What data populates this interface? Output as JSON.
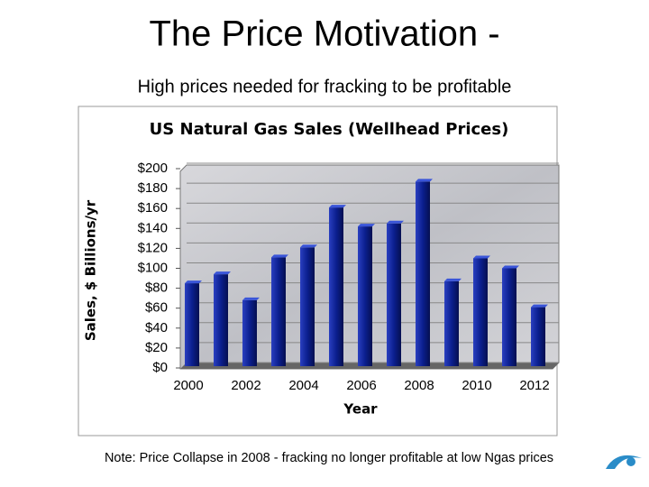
{
  "title": "The Price Motivation -",
  "subtitle": "High prices needed for fracking to be profitable",
  "note": "Note: Price Collapse in 2008 - fracking no longer profitable at low Ngas prices",
  "chart_data": {
    "type": "bar",
    "title": "US Natural Gas Sales (Wellhead Prices)",
    "x_label": "Year",
    "y_label": "Sales, $ Billions/yr",
    "categories": [
      "2000",
      null,
      "2002",
      null,
      "2004",
      null,
      "2006",
      null,
      "2008",
      null,
      "2010",
      null,
      "2012"
    ],
    "values": [
      85,
      94,
      68,
      111,
      121,
      161,
      142,
      145,
      187,
      87,
      110,
      100,
      61
    ],
    "color": "#0b1f8f",
    "ylim": [
      0,
      200
    ],
    "yticks": [
      {
        "value": 0,
        "label": "$0"
      },
      {
        "value": 20,
        "label": "$20"
      },
      {
        "value": 40,
        "label": "$40"
      },
      {
        "value": 60,
        "label": "$60"
      },
      {
        "value": 80,
        "label": "$80"
      },
      {
        "value": 100,
        "label": "$100"
      },
      {
        "value": 120,
        "label": "$120"
      },
      {
        "value": 140,
        "label": "$140"
      },
      {
        "value": 160,
        "label": "$160"
      },
      {
        "value": 180,
        "label": "$180"
      },
      {
        "value": 200,
        "label": "$200"
      }
    ],
    "grid": true
  }
}
